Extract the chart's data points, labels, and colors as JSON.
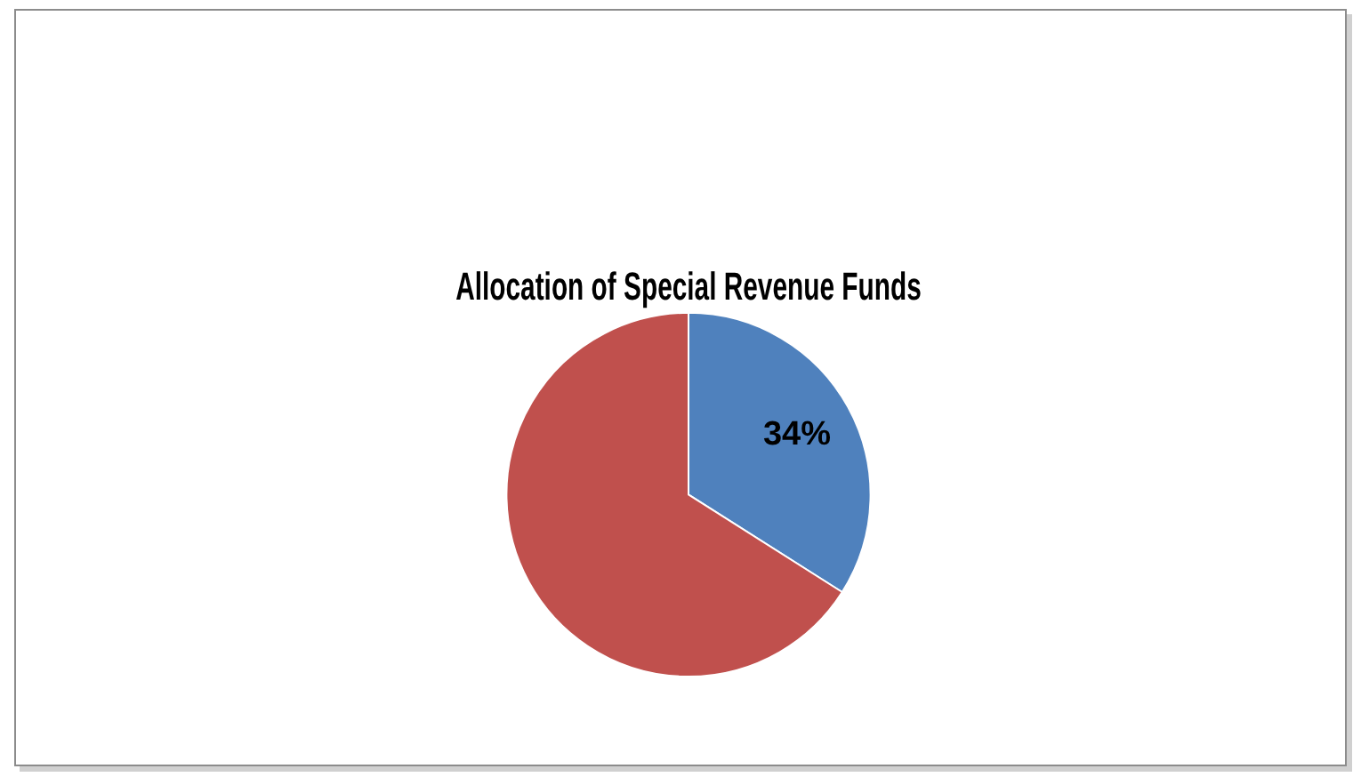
{
  "chart_data": {
    "type": "pie",
    "title": "Allocation of Special Revenue Funds",
    "categories": [
      null,
      null
    ],
    "values": [
      34,
      66
    ],
    "colors": [
      "#4f81bd",
      "#c0504d"
    ],
    "value_labels": [
      "34%",
      null
    ]
  }
}
